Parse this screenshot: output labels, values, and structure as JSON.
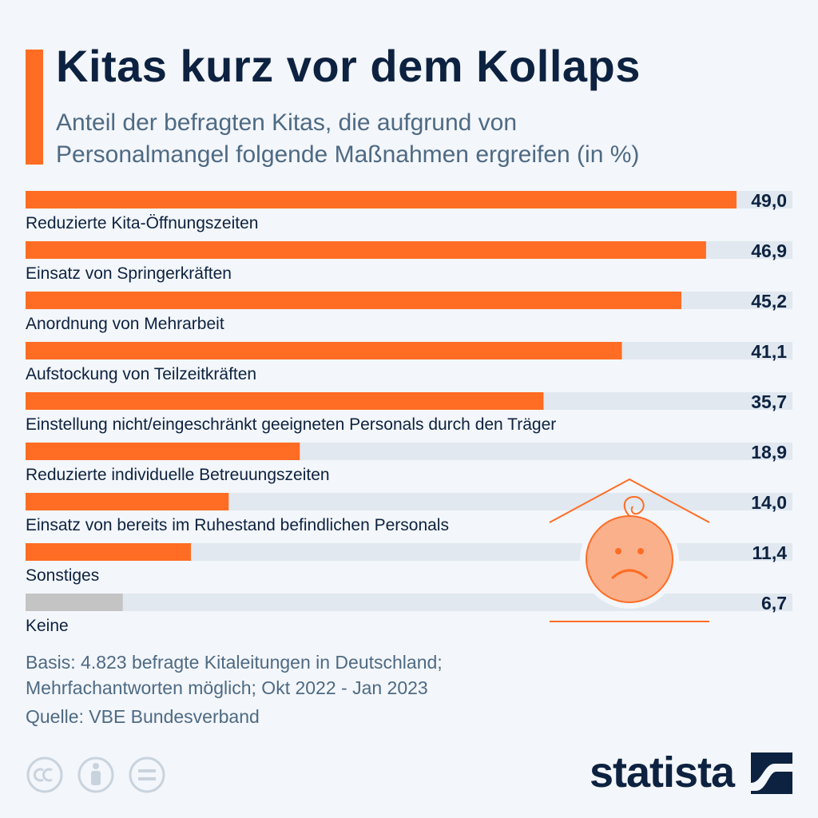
{
  "title": "Kitas kurz vor dem Kollaps",
  "subtitle_line1": "Anteil der befragten Kitas, die aufgrund von",
  "subtitle_line2": "Personalmangel folgende Maßnahmen ergreifen (in %)",
  "colors": {
    "accent": "#ff6d24",
    "bar_bg": "#e1e8f0",
    "bar_keine": "#c4c4c4",
    "text_dark": "#0d2240",
    "text_muted": "#4e6a84"
  },
  "chart_data": {
    "type": "bar",
    "orientation": "horizontal",
    "xlim": [
      0,
      50
    ],
    "categories": [
      "Reduzierte Kita-Öffnungszeiten",
      "Einsatz von Springerkräften",
      "Anordnung von Mehrarbeit",
      "Aufstockung von Teilzeitkräften",
      "Einstellung nicht/eingeschränkt geeigneten Personals durch den Träger",
      "Reduzierte individuelle Betreuungszeiten",
      "Einsatz von bereits im Ruhestand befindlichen Personals",
      "Sonstiges",
      "Keine"
    ],
    "values": [
      49.0,
      46.9,
      45.2,
      41.1,
      35.7,
      18.9,
      14.0,
      11.4,
      6.7
    ],
    "value_labels": [
      "49,0",
      "46,9",
      "45,2",
      "41,1",
      "35,7",
      "18,9",
      "14,0",
      "11,4",
      "6,7"
    ]
  },
  "footer": {
    "basis_line1": "Basis: 4.823 befragte Kitaleitungen in Deutschland;",
    "basis_line2": "Mehrfachantworten möglich; Okt 2022 - Jan 2023",
    "source": "Quelle: VBE Bundesverband"
  },
  "license_icons": [
    "cc-icon",
    "attribution-icon",
    "no-derivatives-icon"
  ],
  "brand": "statista"
}
